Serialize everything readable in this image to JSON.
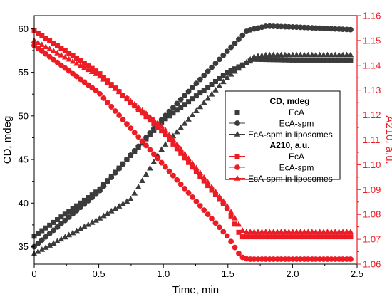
{
  "chart_data": {
    "type": "scatter",
    "x": {
      "label": "Time, min",
      "range": [
        0,
        2.5
      ],
      "ticks": [
        0,
        0.5,
        1.0,
        1.5,
        2.0,
        2.5
      ],
      "tick_labels": [
        "0",
        "0.5",
        "1.0",
        "1.5",
        "2.0",
        "2.5"
      ]
    },
    "y_left": {
      "label": "CD, mdeg",
      "range": [
        33,
        61.5
      ],
      "ticks": [
        35,
        40,
        45,
        50,
        55,
        60
      ],
      "tick_labels": [
        "35",
        "40",
        "45",
        "50",
        "55",
        "60"
      ]
    },
    "y_right": {
      "label": "A210, a.u.",
      "range": [
        1.06,
        1.16
      ],
      "ticks": [
        1.06,
        1.07,
        1.08,
        1.09,
        1.1,
        1.11,
        1.12,
        1.13,
        1.14,
        1.15,
        1.16
      ],
      "tick_labels": [
        "1.06",
        "1.07",
        "1.08",
        "1.09",
        "1.10",
        "1.11",
        "1.12",
        "1.13",
        "1.14",
        "1.15",
        "1.16"
      ]
    },
    "grid": false,
    "legend": {
      "placement": "center-right",
      "groups": [
        {
          "title": "CD, mdeg",
          "entries": [
            "EcA",
            "EcA-spm",
            "EcA-spm in liposomes"
          ]
        },
        {
          "title": "A210, a.u.",
          "entries": [
            "EcA",
            "EcA-spm",
            "EcA-spm in liposomes"
          ]
        }
      ]
    },
    "series": [
      {
        "name": "EcA",
        "group": "CD, mdeg",
        "axis": "left",
        "marker": "square",
        "color": "#3b3b3b",
        "points": [
          [
            0,
            36.2
          ],
          [
            0.5,
            41.5
          ],
          [
            1.0,
            49.5
          ],
          [
            1.5,
            55
          ],
          [
            1.7,
            56.5
          ],
          [
            2.0,
            56.4
          ],
          [
            2.45,
            56.4
          ]
        ]
      },
      {
        "name": "EcA-spm",
        "group": "CD, mdeg",
        "axis": "left",
        "marker": "circle",
        "color": "#3b3b3b",
        "points": [
          [
            0,
            35
          ],
          [
            0.5,
            41.3
          ],
          [
            1.0,
            49.8
          ],
          [
            1.5,
            57.5
          ],
          [
            1.65,
            59.8
          ],
          [
            1.8,
            60.3
          ],
          [
            2.0,
            60.2
          ],
          [
            2.45,
            59.9
          ]
        ]
      },
      {
        "name": "EcA-spm in liposomes",
        "group": "CD, mdeg",
        "axis": "left",
        "marker": "triangle",
        "color": "#3b3b3b",
        "points": [
          [
            0,
            34.2
          ],
          [
            0.5,
            38.2
          ],
          [
            0.75,
            40.5
          ],
          [
            1.0,
            46.5
          ],
          [
            1.5,
            54.5
          ],
          [
            1.7,
            56.8
          ],
          [
            1.8,
            57
          ],
          [
            2.45,
            57
          ]
        ]
      },
      {
        "name": "EcA",
        "group": "A210, a.u.",
        "axis": "right",
        "marker": "square",
        "color": "#ed1c24",
        "points": [
          [
            0,
            1.154
          ],
          [
            0.5,
            1.137
          ],
          [
            1.0,
            1.113
          ],
          [
            1.5,
            1.082
          ],
          [
            1.6,
            1.071
          ],
          [
            2.0,
            1.071
          ],
          [
            2.45,
            1.071
          ]
        ]
      },
      {
        "name": "EcA-spm",
        "group": "A210, a.u.",
        "axis": "right",
        "marker": "circle",
        "color": "#ed1c24",
        "points": [
          [
            0,
            1.148
          ],
          [
            0.5,
            1.129
          ],
          [
            1.0,
            1.1
          ],
          [
            1.5,
            1.071
          ],
          [
            1.6,
            1.063
          ],
          [
            1.65,
            1.062
          ],
          [
            2.45,
            1.062
          ]
        ]
      },
      {
        "name": "EcA-spm in liposomes",
        "group": "A210, a.u.",
        "axis": "right",
        "marker": "triangle",
        "color": "#ed1c24",
        "points": [
          [
            0,
            1.15
          ],
          [
            0.5,
            1.136
          ],
          [
            1.0,
            1.115
          ],
          [
            1.5,
            1.083
          ],
          [
            1.62,
            1.073
          ],
          [
            2.0,
            1.073
          ],
          [
            2.45,
            1.073
          ]
        ]
      }
    ]
  }
}
